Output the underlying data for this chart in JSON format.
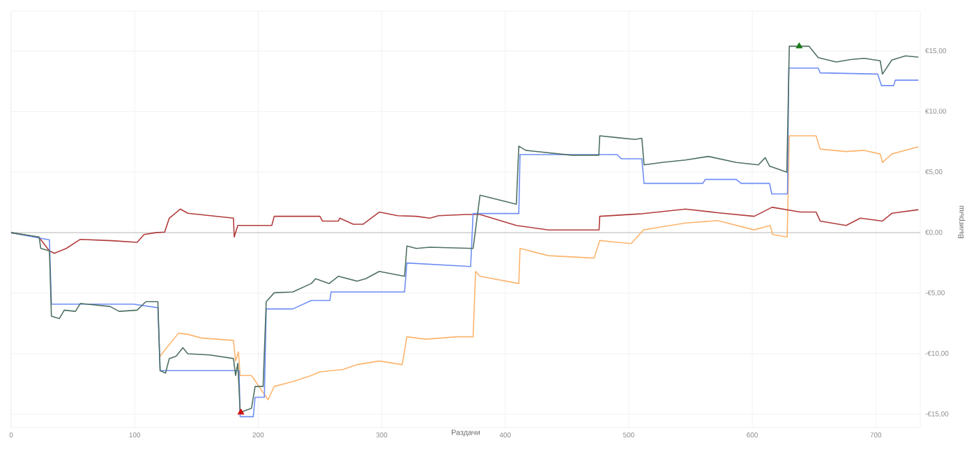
{
  "chart_data": {
    "type": "line",
    "xlabel": "Раздачи",
    "ylabel": "Выигрыш",
    "xlim": [
      0,
      736
    ],
    "ylim": [
      -16.1,
      18.3
    ],
    "xticks": [
      0,
      100,
      200,
      300,
      400,
      500,
      600,
      700
    ],
    "yticks": [
      {
        "value": -15,
        "label": "-€15,00"
      },
      {
        "value": -10,
        "label": "-€10,00"
      },
      {
        "value": -5,
        "label": "-€5,00"
      },
      {
        "value": 0,
        "label": "€0,00"
      },
      {
        "value": 5,
        "label": "€5,00"
      },
      {
        "value": 10,
        "label": "€10,00"
      },
      {
        "value": 15,
        "label": "€15,00"
      }
    ],
    "grid": true,
    "ref_lines": [
      {
        "axis": "y",
        "value": 0,
        "color": "#c8c8c8"
      }
    ],
    "series": [
      {
        "color": "#fdb56e",
        "x": [
          120.6,
          126,
          135.5,
          143,
          154,
          180,
          181.7,
          184,
          185.4,
          194.6,
          198,
          208,
          213,
          228,
          243,
          250,
          268.7,
          280,
          298,
          316.6,
          320.4,
          335.4,
          361,
          374,
          376,
          379.6,
          411,
          412,
          435,
          472,
          476.5,
          491,
          502,
          512,
          527.5,
          546,
          572,
          601.6,
          614.6,
          616.4,
          628.3,
          630,
          651.7,
          655,
          676,
          690.6,
          703.6,
          705.4,
          713,
          734.5
        ],
        "values": [
          -10.2,
          -9.5,
          -8.3,
          -8.4,
          -8.7,
          -8.9,
          -10.6,
          -9.85,
          -11.8,
          -11.8,
          -12.3,
          -13.8,
          -12.7,
          -12.3,
          -11.8,
          -11.5,
          -11.3,
          -10.9,
          -10.6,
          -10.9,
          -8.6,
          -8.8,
          -8.6,
          -8.6,
          -3.2,
          -3.6,
          -4.2,
          -1.3,
          -1.9,
          -2.1,
          -0.65,
          -0.8,
          -0.9,
          0.23,
          0.5,
          0.8,
          1.0,
          0.23,
          0.6,
          -0.15,
          -0.35,
          8.0,
          8.0,
          6.9,
          6.7,
          6.8,
          6.5,
          5.8,
          6.5,
          7.1
        ]
      },
      {
        "color": "#b23b3b",
        "x": [
          0,
          22.6,
          31,
          35,
          44.6,
          56,
          81.7,
          102,
          107.6,
          117,
          124.3,
          128,
          137,
          143,
          180,
          180.6,
          183.5,
          198,
          211,
          213,
          250,
          252,
          265,
          266,
          277,
          285,
          298,
          313,
          328,
          339,
          346,
          368.5,
          379.6,
          409,
          435,
          476,
          476.5,
          509,
          546,
          572,
          601.6,
          616,
          639,
          651.7,
          655,
          676,
          687.5,
          705.4,
          713,
          734.5
        ],
        "values": [
          0,
          -0.4,
          -1.5,
          -1.7,
          -1.3,
          -0.55,
          -0.66,
          -0.8,
          -0.15,
          0.0,
          0.05,
          1.2,
          1.95,
          1.6,
          1.2,
          -0.35,
          0.6,
          0.6,
          0.6,
          1.35,
          1.35,
          0.96,
          0.96,
          1.2,
          0.7,
          0.7,
          1.7,
          1.4,
          1.35,
          1.2,
          1.4,
          1.5,
          1.5,
          0.6,
          0.22,
          0.22,
          1.35,
          1.55,
          1.95,
          1.65,
          1.35,
          2.1,
          1.7,
          1.7,
          0.96,
          0.6,
          1.2,
          0.96,
          1.6,
          1.9
        ]
      },
      {
        "color": "#6e8ef5",
        "x": [
          0,
          31,
          32.6,
          99,
          118.8,
          120.6,
          184.5,
          185.4,
          196,
          197.5,
          205,
          206.5,
          228,
          243,
          258,
          259,
          318.5,
          320.4,
          372,
          374,
          409,
          411,
          412,
          490.6,
          494,
          510.6,
          512.4,
          560,
          562,
          587,
          591,
          614,
          615.8,
          628.5,
          629.6,
          653.4,
          655,
          701.6,
          704.6,
          714.6,
          715.8,
          734.5
        ],
        "values": [
          0,
          -0.6,
          -5.9,
          -5.9,
          -6.2,
          -11.4,
          -11.4,
          -15.2,
          -15.2,
          -13.6,
          -13.6,
          -6.3,
          -6.3,
          -5.6,
          -5.6,
          -4.9,
          -4.9,
          -2.5,
          -2.8,
          1.58,
          1.58,
          1.58,
          6.45,
          6.45,
          6.1,
          6.1,
          4.07,
          4.07,
          4.4,
          4.4,
          4.07,
          4.07,
          3.2,
          3.2,
          13.6,
          13.6,
          13.2,
          13.1,
          12.15,
          12.15,
          12.6,
          12.6
        ]
      },
      {
        "color": "#4e7062",
        "x": [
          0,
          22.6,
          24,
          31,
          32.6,
          39,
          43,
          52,
          56,
          80,
          87.4,
          102,
          109,
          118.8,
          120.6,
          125,
          128,
          133.6,
          139,
          143,
          161,
          180,
          181.7,
          183.5,
          185.4,
          194.6,
          197.5,
          204,
          206.5,
          213,
          228,
          243,
          246.5,
          257.5,
          265,
          280,
          287,
          298,
          318.5,
          320.4,
          328,
          339,
          374,
          379.6,
          409,
          411,
          416.6,
          453.6,
          475.8,
          476.5,
          490.6,
          505,
          510.6,
          512.4,
          527,
          546,
          564.5,
          587,
          605,
          610.5,
          614,
          628,
          630,
          646,
          653.4,
          668,
          679.6,
          690.6,
          703.6,
          705.4,
          713,
          724,
          734.5
        ],
        "values": [
          0,
          -0.35,
          -1.3,
          -1.5,
          -6.9,
          -7.1,
          -6.4,
          -6.5,
          -5.85,
          -6.1,
          -6.5,
          -6.4,
          -5.7,
          -5.7,
          -11.4,
          -11.6,
          -10.4,
          -10.2,
          -9.5,
          -10.0,
          -10.1,
          -10.4,
          -11.8,
          -10.8,
          -14.85,
          -14.5,
          -12.7,
          -12.7,
          -5.7,
          -4.96,
          -4.9,
          -4.2,
          -3.8,
          -4.2,
          -3.6,
          -4.0,
          -3.8,
          -3.2,
          -3.6,
          -1.1,
          -1.3,
          -1.2,
          -1.3,
          3.1,
          2.35,
          7.15,
          6.8,
          6.4,
          6.4,
          8.0,
          7.85,
          7.7,
          7.8,
          5.6,
          5.8,
          6.0,
          6.3,
          5.8,
          5.6,
          6.2,
          5.5,
          5.0,
          15.4,
          15.4,
          14.46,
          14.1,
          14.3,
          14.4,
          14.2,
          13.1,
          14.26,
          14.6,
          14.5
        ]
      },
      {
        "type": "scatter",
        "marker": "triangle",
        "color": "#1a7a1a",
        "x": [
          638
        ],
        "values": [
          15.4
        ]
      },
      {
        "type": "scatter",
        "marker": "triangle",
        "color": "#d01010",
        "x": [
          186
        ],
        "values": [
          -14.85
        ]
      }
    ]
  }
}
